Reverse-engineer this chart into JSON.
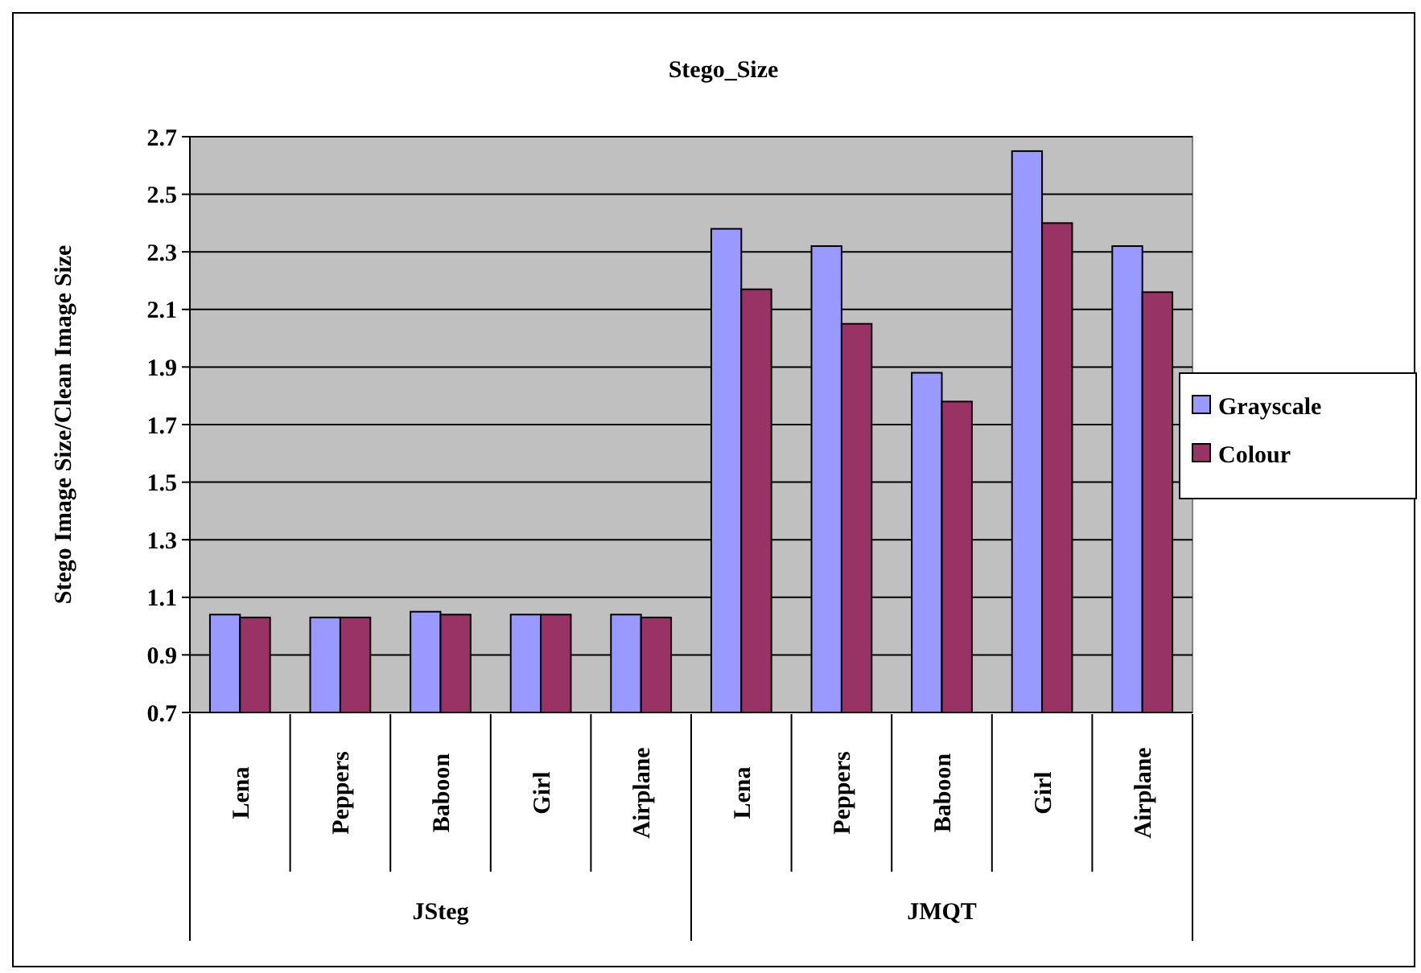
{
  "chart_data": {
    "type": "bar",
    "title": "Stego_Size",
    "ylabel": "Stego Image Size/Clean Image Size",
    "categories": [
      "Lena",
      "Peppers",
      "Baboon",
      "Girl",
      "Airplane",
      "Lena",
      "Peppers",
      "Baboon",
      "Girl",
      "Airplane"
    ],
    "annotations": [
      "JSteg",
      "JMQT"
    ],
    "series": [
      {
        "name": "Grayscale",
        "color": "#9999ff",
        "values": [
          1.04,
          1.03,
          1.05,
          1.04,
          1.04,
          2.38,
          2.32,
          1.88,
          2.65,
          2.32
        ]
      },
      {
        "name": "Colour",
        "color": "#993366",
        "values": [
          1.03,
          1.03,
          1.04,
          1.04,
          1.03,
          2.17,
          2.05,
          1.78,
          2.4,
          2.16
        ]
      }
    ],
    "ylim": [
      0.7,
      2.7
    ],
    "yticks": [
      0.7,
      0.9,
      1.1,
      1.3,
      1.5,
      1.7,
      1.9,
      2.1,
      2.3,
      2.5,
      2.7
    ],
    "grid": "y",
    "legend": "right"
  }
}
